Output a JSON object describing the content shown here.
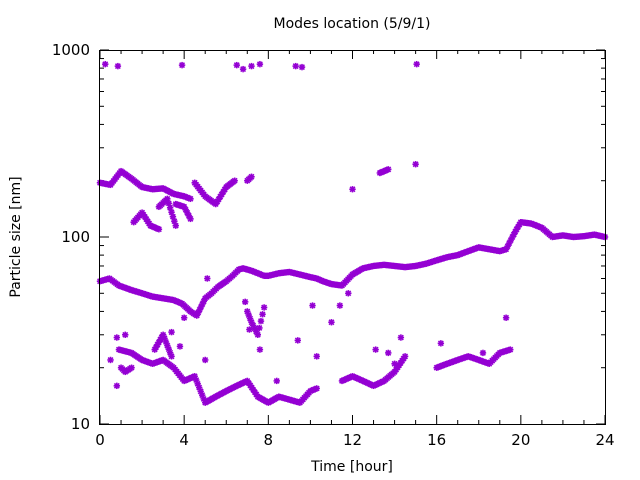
{
  "chart_data": {
    "type": "scatter",
    "title": "Modes location (5/9/1)",
    "xlabel": "Time [hour]",
    "ylabel": "Particle size [nm]",
    "xlim": [
      0,
      24
    ],
    "ylim": [
      10,
      1000
    ],
    "y_scale": "log",
    "grid": false,
    "legend": "none",
    "marker_color": "#9400d3",
    "x_ticks": [
      0,
      4,
      8,
      12,
      16,
      20,
      24
    ],
    "x_tick_labels": [
      "0",
      "4",
      "8",
      "12",
      "16",
      "20",
      "24"
    ],
    "y_ticks": [
      10,
      100,
      1000
    ],
    "y_tick_labels": [
      "10",
      "100",
      "1000"
    ],
    "series": [
      {
        "name": "",
        "segments": [
          {
            "x": [
              0,
              0.45,
              0.9,
              1.5,
              2.0,
              2.5,
              3.0,
              3.5,
              3.9,
              4.3,
              4.6,
              5.0,
              5.3,
              5.6,
              6.0,
              6.3,
              6.6,
              6.8,
              7.2,
              7.5,
              7.8,
              8.0,
              8.5,
              9.0,
              9.5,
              10.0,
              10.3,
              10.6,
              11.0,
              11.5,
              12.0,
              12.5,
              13.0,
              13.5,
              14.0,
              14.5,
              15.0,
              15.5,
              16.0,
              16.5,
              17.0,
              17.5,
              18.0,
              18.5,
              19.0,
              19.3,
              19.6,
              19.8,
              20.0,
              20.5,
              21.0,
              21.5,
              22.0,
              22.5,
              23.0,
              23.5,
              24.0
            ],
            "y": [
              58,
              60,
              55,
              52,
              50,
              48,
              47,
              46,
              44,
              40,
              38,
              47,
              50,
              54,
              58,
              62,
              67,
              68,
              66,
              64,
              62,
              62,
              64,
              65,
              63,
              61,
              60,
              58,
              56,
              55,
              63,
              68,
              70,
              71,
              70,
              69,
              70,
              72,
              75,
              78,
              80,
              84,
              88,
              86,
              84,
              86,
              100,
              110,
              120,
              118,
              112,
              100,
              102,
              100,
              101,
              103,
              100
            ]
          },
          {
            "x": [
              0,
              0.5,
              1.0,
              1.5,
              2.0,
              2.5,
              3.0,
              3.5,
              4.0,
              4.3
            ],
            "y": [
              195,
              190,
              225,
              205,
              185,
              180,
              182,
              170,
              165,
              160
            ]
          },
          {
            "x": [
              1.6,
              2.0,
              2.4,
              2.8
            ],
            "y": [
              120,
              135,
              115,
              110
            ]
          },
          {
            "x": [
              2.8,
              3.2,
              3.6
            ],
            "y": [
              145,
              160,
              115
            ]
          },
          {
            "x": [
              3.6,
              4.0,
              4.3
            ],
            "y": [
              150,
              145,
              125
            ]
          },
          {
            "x": [
              4.5,
              5.0,
              5.5,
              6.0,
              6.4
            ],
            "y": [
              195,
              165,
              150,
              185,
              200
            ]
          },
          {
            "x": [
              7.0,
              7.2
            ],
            "y": [
              200,
              210
            ]
          },
          {
            "x": [
              0.9,
              1.5,
              2.0,
              2.5,
              3.0,
              3.5,
              4.0,
              4.5,
              5.0,
              5.5,
              6.0,
              6.5,
              7.0,
              7.5,
              8.0,
              8.5,
              9.0,
              9.5,
              10.0,
              10.3
            ],
            "y": [
              25,
              24,
              22,
              21,
              22,
              20,
              17,
              18,
              13,
              14,
              15,
              16,
              17,
              14,
              13,
              14,
              13.5,
              13,
              15,
              15.5
            ]
          },
          {
            "x": [
              1.0,
              1.2,
              1.5
            ],
            "y": [
              20,
              19,
              20
            ]
          },
          {
            "x": [
              2.6,
              3.0,
              3.4
            ],
            "y": [
              25,
              30,
              23
            ]
          },
          {
            "x": [
              7.0,
              7.2,
              7.5,
              7.8
            ],
            "y": [
              40,
              35,
              30,
              42
            ]
          },
          {
            "x": [
              11.5,
              12.0,
              12.5,
              13.0,
              13.5,
              14.0,
              14.5
            ],
            "y": [
              17,
              18,
              17,
              16,
              17,
              19,
              23
            ]
          },
          {
            "x": [
              16.0,
              16.5,
              17.0,
              17.5,
              18.0,
              18.5,
              19.0,
              19.5
            ],
            "y": [
              20,
              21,
              22,
              23,
              22,
              21,
              24,
              25
            ]
          },
          {
            "x": [
              13.3,
              13.7
            ],
            "y": [
              220,
              230
            ]
          }
        ],
        "points": [
          {
            "x": 0.25,
            "y": 840
          },
          {
            "x": 0.85,
            "y": 820
          },
          {
            "x": 3.9,
            "y": 830
          },
          {
            "x": 6.5,
            "y": 830
          },
          {
            "x": 6.8,
            "y": 790
          },
          {
            "x": 7.2,
            "y": 820
          },
          {
            "x": 7.6,
            "y": 840
          },
          {
            "x": 9.3,
            "y": 820
          },
          {
            "x": 9.6,
            "y": 810
          },
          {
            "x": 15.05,
            "y": 840
          },
          {
            "x": 15.0,
            "y": 245
          },
          {
            "x": 12.0,
            "y": 180
          },
          {
            "x": 0.8,
            "y": 29
          },
          {
            "x": 1.2,
            "y": 30
          },
          {
            "x": 0.5,
            "y": 22
          },
          {
            "x": 0.8,
            "y": 16
          },
          {
            "x": 3.4,
            "y": 31
          },
          {
            "x": 3.8,
            "y": 26
          },
          {
            "x": 4.0,
            "y": 37
          },
          {
            "x": 5.1,
            "y": 60
          },
          {
            "x": 5.0,
            "y": 22
          },
          {
            "x": 6.9,
            "y": 45
          },
          {
            "x": 7.1,
            "y": 32
          },
          {
            "x": 7.6,
            "y": 25
          },
          {
            "x": 8.4,
            "y": 17
          },
          {
            "x": 9.4,
            "y": 28
          },
          {
            "x": 10.1,
            "y": 43
          },
          {
            "x": 10.3,
            "y": 23
          },
          {
            "x": 11.0,
            "y": 35
          },
          {
            "x": 11.4,
            "y": 43
          },
          {
            "x": 11.8,
            "y": 50
          },
          {
            "x": 13.1,
            "y": 25
          },
          {
            "x": 13.7,
            "y": 24
          },
          {
            "x": 14.0,
            "y": 21
          },
          {
            "x": 14.3,
            "y": 29
          },
          {
            "x": 16.2,
            "y": 27
          },
          {
            "x": 18.2,
            "y": 24
          },
          {
            "x": 19.3,
            "y": 37
          }
        ]
      }
    ]
  }
}
